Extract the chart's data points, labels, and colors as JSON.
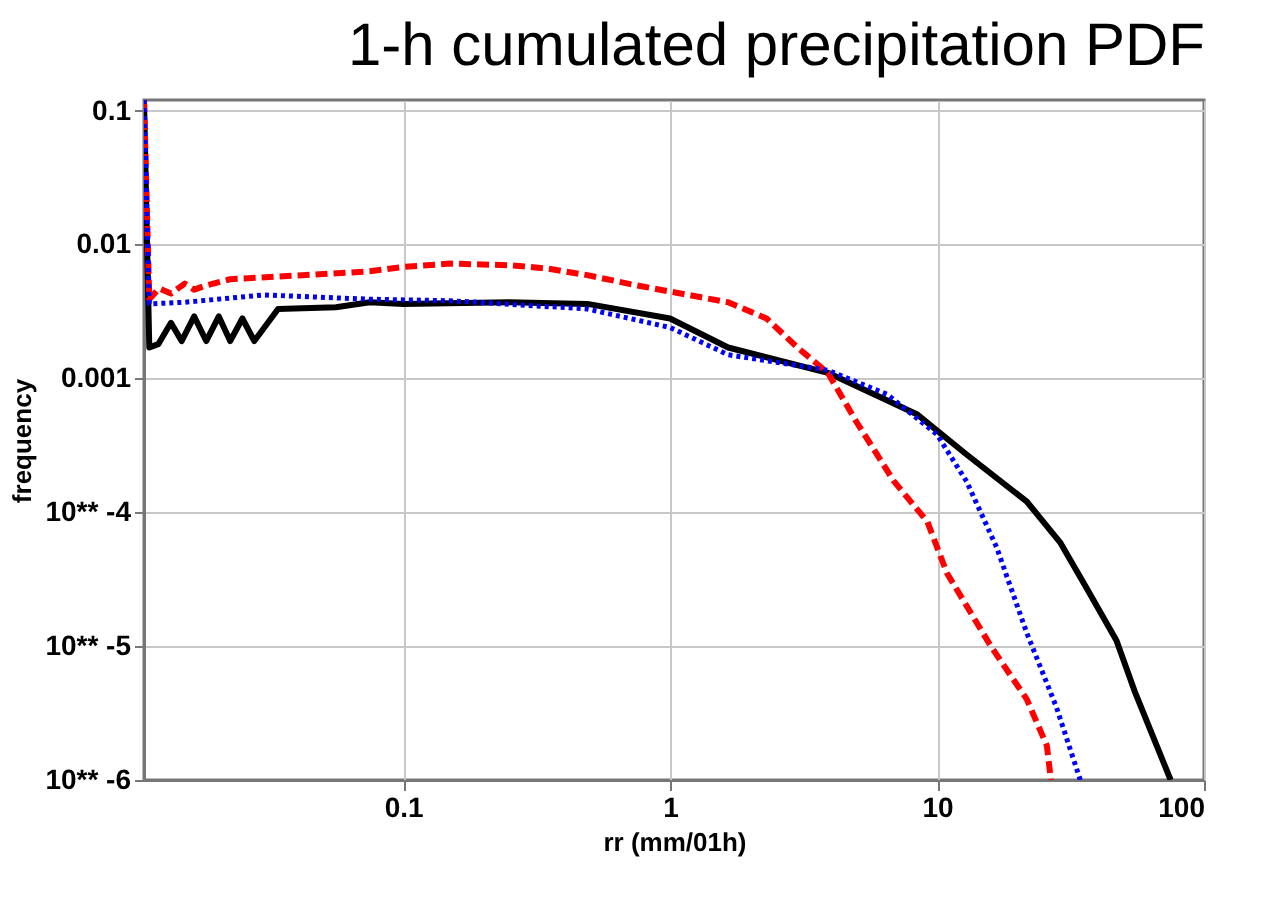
{
  "chart_data": {
    "type": "line",
    "title": "1-h cumulated precipitation PDF",
    "xlabel": "rr (mm/01h)",
    "ylabel": "frequency",
    "log": "xy",
    "grid": true,
    "xlim": [
      0.0107,
      100
    ],
    "ylim": [
      1e-06,
      0.12
    ],
    "xticks": [
      0.1,
      1,
      10,
      100
    ],
    "yticks": [
      {
        "value": 1e-06,
        "label": "10** -6"
      },
      {
        "value": 1e-05,
        "label": "10** -5"
      },
      {
        "value": 0.0001,
        "label": "10** -4"
      },
      0.001,
      0.01,
      0.1
    ],
    "series": [
      {
        "color": "#000000",
        "line_style": "solid",
        "x": [
          0.0107,
          0.0112,
          0.0121,
          0.0135,
          0.0148,
          0.0165,
          0.0183,
          0.0204,
          0.0225,
          0.025,
          0.0277,
          0.034,
          0.056,
          0.075,
          0.1,
          0.25,
          0.49,
          1.0,
          1.65,
          3.9,
          8.4,
          12.9,
          21.7,
          29,
          36,
          47,
          55,
          75
        ],
        "values": [
          0.12,
          0.0017,
          0.0018,
          0.0026,
          0.0019,
          0.0029,
          0.0019,
          0.0029,
          0.0019,
          0.0028,
          0.0019,
          0.0033,
          0.0034,
          0.0037,
          0.0036,
          0.0037,
          0.0036,
          0.0028,
          0.0017,
          0.0011,
          0.00054,
          0.00027,
          0.00012,
          5.9e-05,
          2.8e-05,
          1.1e-05,
          4.6e-06,
          1e-06
        ]
      },
      {
        "color": "#ff0000",
        "line_style": "dashed",
        "x": [
          0.0107,
          0.0112,
          0.0122,
          0.0135,
          0.0152,
          0.0165,
          0.018,
          0.0225,
          0.042,
          0.075,
          0.1,
          0.15,
          0.25,
          0.35,
          0.49,
          0.73,
          1.65,
          2.3,
          3.0,
          3.9,
          5.0,
          6.9,
          9.2,
          10.9,
          15.9,
          21.7,
          25.8,
          26.7
        ],
        "values": [
          0.12,
          0.0039,
          0.0047,
          0.0043,
          0.0051,
          0.0046,
          0.0049,
          0.0055,
          0.0059,
          0.0063,
          0.0068,
          0.0072,
          0.007,
          0.0066,
          0.0059,
          0.005,
          0.0037,
          0.0028,
          0.0017,
          0.0011,
          0.00047,
          0.00017,
          8.5e-05,
          3.5e-05,
          1e-05,
          4e-06,
          1.8e-06,
          1e-06
        ]
      },
      {
        "color": "#0000ff",
        "line_style": "dotted",
        "x": [
          0.0107,
          0.0112,
          0.0152,
          0.03,
          0.075,
          0.15,
          0.49,
          1.0,
          1.65,
          3.9,
          6.5,
          10,
          12.9,
          16.7,
          21.7,
          28,
          34.4
        ],
        "values": [
          0.12,
          0.0036,
          0.0037,
          0.0042,
          0.0039,
          0.0038,
          0.0033,
          0.0024,
          0.0015,
          0.00115,
          0.00076,
          0.00038,
          0.00017,
          5.5e-05,
          1.25e-05,
          3.5e-06,
          1e-06
        ]
      }
    ]
  }
}
